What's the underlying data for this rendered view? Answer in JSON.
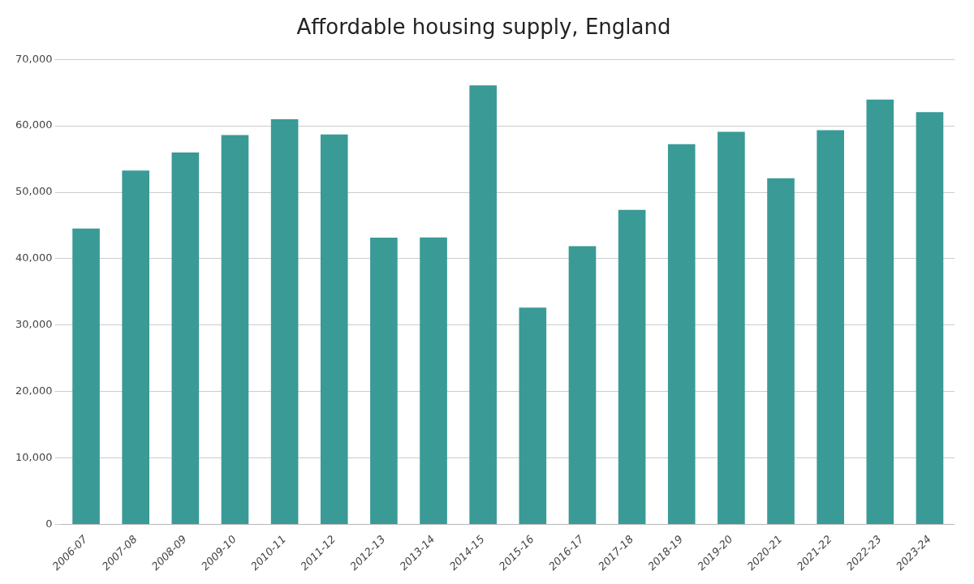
{
  "chart_data": {
    "type": "bar",
    "title": "Affordable housing supply, England",
    "categories": [
      "2006-07",
      "2007-08",
      "2008-09",
      "2009-10",
      "2010-11",
      "2011-12",
      "2012-13",
      "2013-14",
      "2014-15",
      "2015-16",
      "2016-17",
      "2017-18",
      "2018-19",
      "2019-20",
      "2020-21",
      "2021-22",
      "2022-23",
      "2023-24"
    ],
    "values": [
      44530,
      53280,
      55980,
      58610,
      60980,
      58690,
      43160,
      43200,
      66080,
      32630,
      41870,
      47355,
      57230,
      59110,
      52110,
      59350,
      63960,
      62060
    ],
    "color": "#3a9a96",
    "ylim": [
      0,
      70000
    ],
    "yticks": [
      0,
      {
        "value": 10000,
        "label": "10,000"
      },
      {
        "value": 20000,
        "label": "20,000"
      },
      {
        "value": 30000,
        "label": "30,000"
      },
      {
        "value": 40000,
        "label": "40,000"
      },
      {
        "value": 50000,
        "label": "50,000"
      },
      {
        "value": 60000,
        "label": "60,000"
      },
      {
        "value": 70000,
        "label": "70,000"
      }
    ],
    "grid": true
  }
}
